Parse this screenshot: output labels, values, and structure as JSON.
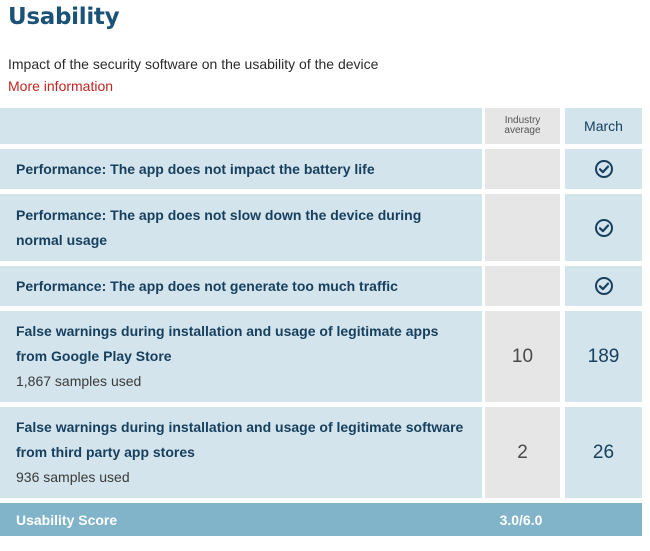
{
  "header": {
    "title": "Usability",
    "subtitle": "Impact of the security software on the usability of the device",
    "more_link": "More information"
  },
  "table": {
    "columns": {
      "industry_line1": "Industry",
      "industry_line2": "average",
      "month": "March"
    },
    "rows": [
      {
        "label": "Performance: The app does not impact the battery life",
        "industry": "",
        "month_icon": "check-circle-icon"
      },
      {
        "label": "Performance: The app does not slow down the device during normal usage",
        "industry": "",
        "month_icon": "check-circle-icon"
      },
      {
        "label": "Performance: The app does not generate too much traffic",
        "industry": "",
        "month_icon": "check-circle-icon"
      },
      {
        "label": "False warnings during installation and usage of legitimate apps from Google Play Store",
        "samples": "1,867 samples used",
        "industry": "10",
        "month": "189"
      },
      {
        "label": "False warnings during installation and usage of legitimate software from third party app stores",
        "samples": "936 samples used",
        "industry": "2",
        "month": "26"
      }
    ],
    "score": {
      "label": "Usability Score",
      "value": "3.0/6.0"
    }
  },
  "colors": {
    "title": "#1b5276",
    "link": "#c0261f",
    "row_bg": "#d3e4ec",
    "industry_bg": "#e6e6e6",
    "score_bg": "#81b3c9"
  }
}
